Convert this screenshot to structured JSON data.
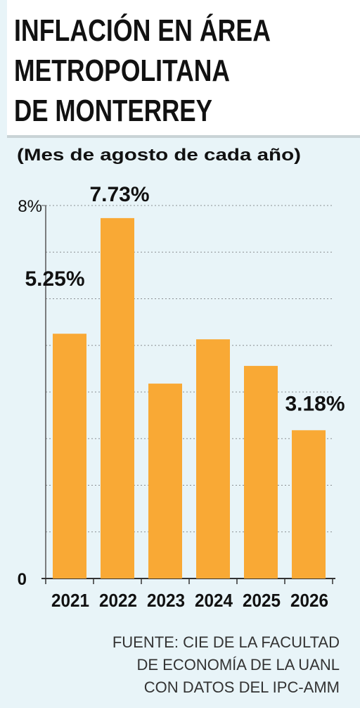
{
  "chart_data": {
    "type": "bar",
    "title": [
      "INFLACIÓN EN ÁREA",
      "METROPOLITANA",
      "DE MONTERREY"
    ],
    "subtitle": "(Mes de agosto de cada año)",
    "categories": [
      "2021",
      "2022",
      "2023",
      "2024",
      "2025",
      "2026"
    ],
    "values": [
      5.25,
      7.73,
      4.18,
      5.13,
      4.56,
      3.18
    ],
    "value_labels": [
      "5.25%",
      "7.73%",
      null,
      null,
      null,
      "3.18%"
    ],
    "color": "#f9a935",
    "ylim": [
      0,
      8
    ],
    "yticks": [
      0,
      {
        "value": 8,
        "label": "8%"
      }
    ],
    "minor_yticks": [
      1,
      2,
      3,
      4,
      5,
      6,
      7
    ],
    "grid": true,
    "source": [
      "FUENTE: CIE DE LA FACULTAD",
      "DE ECONOMÍA DE LA UANL",
      "CON DATOS DEL IPC-AMM"
    ]
  }
}
